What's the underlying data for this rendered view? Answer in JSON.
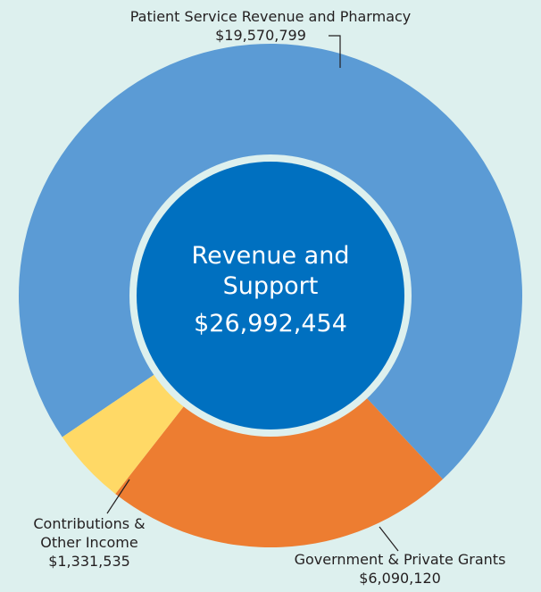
{
  "chart_data": {
    "type": "pie",
    "donut": true,
    "title": "",
    "center_label": {
      "line1": "Revenue and",
      "line2": "Support",
      "total": "$26,992,454"
    },
    "total_value": 26992454,
    "slices": [
      {
        "label": "Patient Service Revenue and Pharmacy",
        "value": 19570799,
        "value_label": "$19,570,799",
        "color": "#5b9bd5"
      },
      {
        "label": "Government & Private Grants",
        "value": 6090120,
        "value_label": "$6,090,120",
        "color": "#ed7d31"
      },
      {
        "label_line1": "Contributions &",
        "label_line2": "Other Income",
        "label": "Contributions & Other Income",
        "value": 1331535,
        "value_label": "$1,331,535",
        "color": "#ffd966"
      }
    ],
    "colors": {
      "background": "#ddf0ee",
      "center": "#0070c0",
      "ring_gap": "#ddf0ee"
    }
  }
}
